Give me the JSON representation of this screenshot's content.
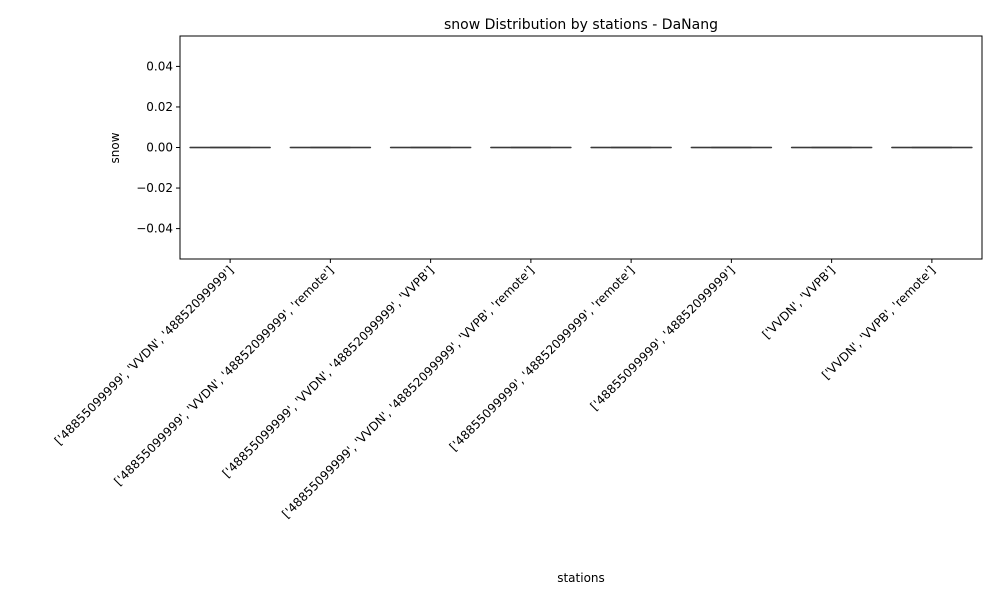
{
  "chart_data": {
    "type": "boxplot",
    "title": "snow Distribution by stations - DaNang",
    "xlabel": "stations",
    "ylabel": "snow",
    "ylim": [
      -0.055,
      0.055
    ],
    "yticks": [
      -0.04,
      -0.02,
      0.0,
      0.02,
      0.04
    ],
    "ytick_labels": [
      "−0.04",
      "−0.02",
      "0.00",
      "0.02",
      "0.04"
    ],
    "grid": false,
    "categories": [
      "['48855099999', 'VVDN', '48852099999']",
      "['48855099999', 'VVDN', '48852099999', 'remote']",
      "['48855099999', 'VVDN', '48852099999', 'VVPB']",
      "['48855099999', 'VVDN', '48852099999', 'VVPB', 'remote']",
      "['48855099999', '48852099999', 'remote']",
      "['48855099999', '48852099999']",
      "['VVDN', 'VVPB']",
      "['VVDN', 'VVPB', 'remote']"
    ],
    "boxes": [
      {
        "min": 0,
        "q1": 0,
        "median": 0,
        "q3": 0,
        "max": 0
      },
      {
        "min": 0,
        "q1": 0,
        "median": 0,
        "q3": 0,
        "max": 0
      },
      {
        "min": 0,
        "q1": 0,
        "median": 0,
        "q3": 0,
        "max": 0
      },
      {
        "min": 0,
        "q1": 0,
        "median": 0,
        "q3": 0,
        "max": 0
      },
      {
        "min": 0,
        "q1": 0,
        "median": 0,
        "q3": 0,
        "max": 0
      },
      {
        "min": 0,
        "q1": 0,
        "median": 0,
        "q3": 0,
        "max": 0
      },
      {
        "min": 0,
        "q1": 0,
        "median": 0,
        "q3": 0,
        "max": 0
      },
      {
        "min": 0,
        "q1": 0,
        "median": 0,
        "q3": 0,
        "max": 0
      }
    ],
    "box_color": "#3a3a3a"
  }
}
